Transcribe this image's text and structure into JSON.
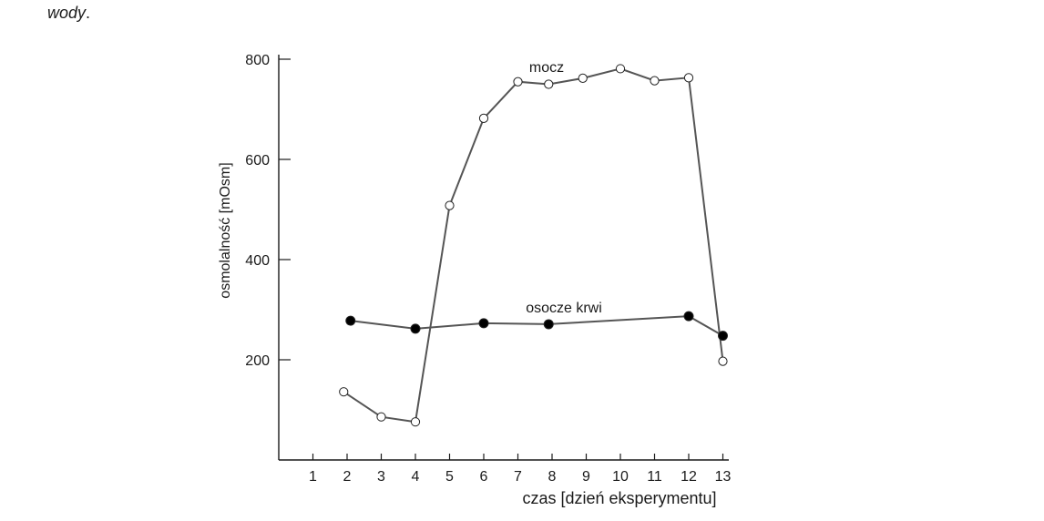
{
  "header_fragment": {
    "word": "wody",
    "punctuation": "."
  },
  "chart_data": {
    "type": "line",
    "xlabel": "czas [dzień eksperymentu]",
    "ylabel": "osmolalność [mOsm]",
    "x_ticks": [
      1,
      2,
      3,
      4,
      5,
      6,
      7,
      8,
      9,
      10,
      11,
      12,
      13
    ],
    "y_ticks": [
      200,
      400,
      600,
      800
    ],
    "xlim": [
      0,
      13
    ],
    "ylim": [
      0,
      800
    ],
    "grid": false,
    "series": [
      {
        "name": "mocz",
        "marker": "open-circle",
        "color": "#555555",
        "points": [
          {
            "x": 1.9,
            "y": 136
          },
          {
            "x": 3.0,
            "y": 86
          },
          {
            "x": 4.0,
            "y": 76
          },
          {
            "x": 5.0,
            "y": 508
          },
          {
            "x": 6.0,
            "y": 682
          },
          {
            "x": 7.0,
            "y": 755
          },
          {
            "x": 7.9,
            "y": 750
          },
          {
            "x": 8.9,
            "y": 762
          },
          {
            "x": 10.0,
            "y": 781
          },
          {
            "x": 11.0,
            "y": 757
          },
          {
            "x": 12.0,
            "y": 763
          },
          {
            "x": 13.0,
            "y": 197
          }
        ]
      },
      {
        "name": "osocze krwi",
        "marker": "filled-circle",
        "color": "#555555",
        "points": [
          {
            "x": 2.1,
            "y": 278
          },
          {
            "x": 4.0,
            "y": 262
          },
          {
            "x": 6.0,
            "y": 273
          },
          {
            "x": 7.9,
            "y": 271
          },
          {
            "x": 12.0,
            "y": 287
          },
          {
            "x": 13.0,
            "y": 248
          }
        ]
      }
    ]
  }
}
